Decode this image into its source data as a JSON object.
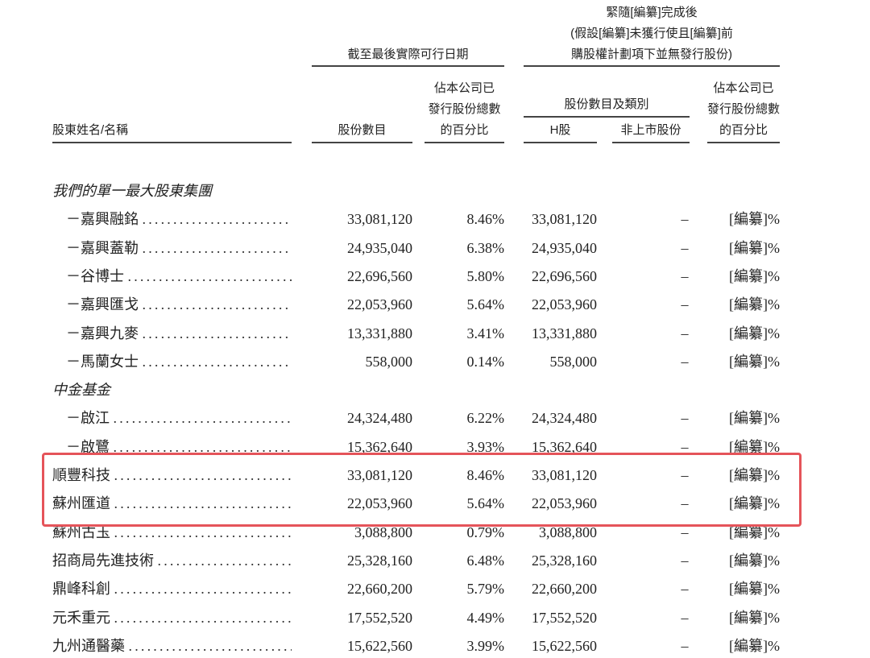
{
  "header": {
    "group1_title": "截至最後實際可行日期",
    "group2_title_lines": [
      "緊隨[編纂]完成後",
      "(假設[編纂]未獲行使且[編纂]前",
      "購股權計劃項下並無發行股份)"
    ],
    "col_name": "股東姓名/名稱",
    "col_shares": "股份數目",
    "col_pct_lines": [
      "佔本公司已",
      "發行股份總數",
      "的百分比"
    ],
    "col_class_title": "股份數目及類別",
    "col_h": "H股",
    "col_unlisted": "非上市股份",
    "col_pct2_lines": [
      "佔本公司已",
      "發行股份總數",
      "的百分比"
    ]
  },
  "sections": [
    {
      "title": "我們的單一最大股東集團",
      "rows": [
        {
          "name": "－嘉興融銘",
          "shares": "33,081,120",
          "pct": "8.46%",
          "h": "33,081,120",
          "unlisted": "–",
          "pct_after": "[編纂]%"
        },
        {
          "name": "－嘉興蓋勒",
          "shares": "24,935,040",
          "pct": "6.38%",
          "h": "24,935,040",
          "unlisted": "–",
          "pct_after": "[編纂]%"
        },
        {
          "name": "－谷博士",
          "shares": "22,696,560",
          "pct": "5.80%",
          "h": "22,696,560",
          "unlisted": "–",
          "pct_after": "[編纂]%"
        },
        {
          "name": "－嘉興匯戈",
          "shares": "22,053,960",
          "pct": "5.64%",
          "h": "22,053,960",
          "unlisted": "–",
          "pct_after": "[編纂]%"
        },
        {
          "name": "－嘉興九麥",
          "shares": "13,331,880",
          "pct": "3.41%",
          "h": "13,331,880",
          "unlisted": "–",
          "pct_after": "[編纂]%"
        },
        {
          "name": "－馬蘭女士",
          "shares": "558,000",
          "pct": "0.14%",
          "h": "558,000",
          "unlisted": "–",
          "pct_after": "[編纂]%"
        }
      ]
    },
    {
      "title": "中金基金",
      "rows": [
        {
          "name": "－啟江",
          "shares": "24,324,480",
          "pct": "6.22%",
          "h": "24,324,480",
          "unlisted": "–",
          "pct_after": "[編纂]%"
        },
        {
          "name": "－啟鷺",
          "shares": "15,362,640",
          "pct": "3.93%",
          "h": "15,362,640",
          "unlisted": "–",
          "pct_after": "[編纂]%"
        }
      ]
    }
  ],
  "rows": [
    {
      "name": "順豐科技",
      "shares": "33,081,120",
      "pct": "8.46%",
      "h": "33,081,120",
      "unlisted": "–",
      "pct_after": "[編纂]%",
      "highlighted": true
    },
    {
      "name": "蘇州匯道",
      "shares": "22,053,960",
      "pct": "5.64%",
      "h": "22,053,960",
      "unlisted": "–",
      "pct_after": "[編纂]%",
      "highlighted": true
    },
    {
      "name": "蘇州古玉",
      "shares": "3,088,800",
      "pct": "0.79%",
      "h": "3,088,800",
      "unlisted": "–",
      "pct_after": "[編纂]%"
    },
    {
      "name": "招商局先進技術",
      "shares": "25,328,160",
      "pct": "6.48%",
      "h": "25,328,160",
      "unlisted": "–",
      "pct_after": "[編纂]%"
    },
    {
      "name": "鼎峰科創",
      "shares": "22,660,200",
      "pct": "5.79%",
      "h": "22,660,200",
      "unlisted": "–",
      "pct_after": "[編纂]%"
    },
    {
      "name": "元禾重元",
      "shares": "17,552,520",
      "pct": "4.49%",
      "h": "17,552,520",
      "unlisted": "–",
      "pct_after": "[編纂]%"
    },
    {
      "name": "九州通醫藥",
      "shares": "15,622,560",
      "pct": "3.99%",
      "h": "15,622,560",
      "unlisted": "–",
      "pct_after": "[編纂]%"
    }
  ],
  "highlight_color": "#e5545a"
}
